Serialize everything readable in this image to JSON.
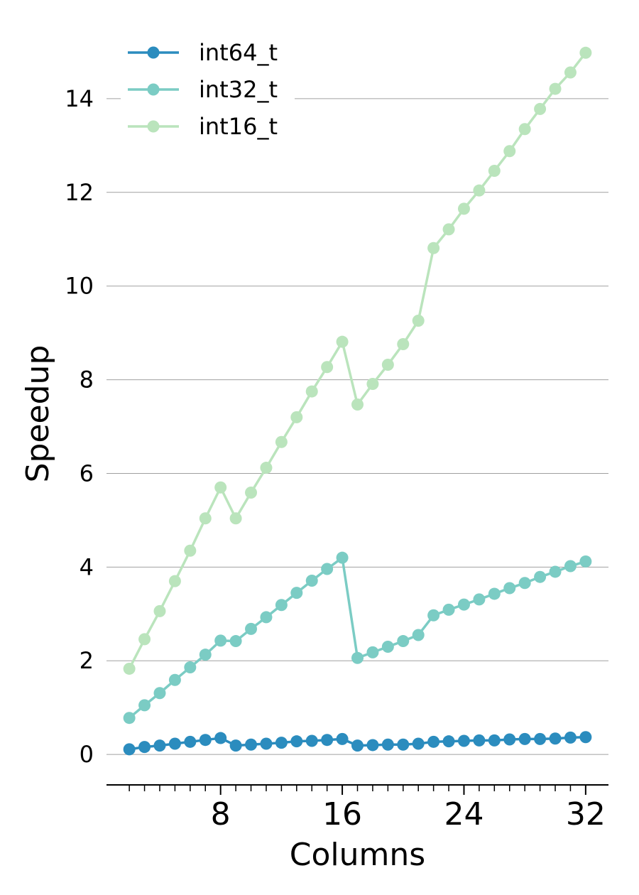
{
  "chart_data": {
    "type": "line",
    "xlabel": "Columns",
    "ylabel": "Speedup",
    "x": [
      2,
      3,
      4,
      5,
      6,
      7,
      8,
      9,
      10,
      11,
      12,
      13,
      14,
      15,
      16,
      17,
      18,
      19,
      20,
      21,
      22,
      23,
      24,
      25,
      26,
      27,
      28,
      29,
      30,
      31,
      32
    ],
    "xlim": [
      0.5,
      33.5
    ],
    "ylim": [
      -0.65,
      15.5
    ],
    "xticks": [
      8,
      16,
      24,
      32
    ],
    "xtick_labels": [
      "8",
      "16",
      "24",
      "32"
    ],
    "x_minor_ticks": [
      2,
      3,
      4,
      5,
      6,
      7,
      9,
      10,
      11,
      12,
      13,
      14,
      15,
      17,
      18,
      19,
      20,
      21,
      22,
      23,
      25,
      26,
      27,
      28,
      29,
      30,
      31
    ],
    "yticks": [
      0,
      2,
      4,
      6,
      8,
      10,
      12,
      14
    ],
    "ytick_labels": [
      "0",
      "2",
      "4",
      "6",
      "8",
      "10",
      "12",
      "14"
    ],
    "grid": "horizontal",
    "legend_position": "top-left",
    "series": [
      {
        "name": "int64_t",
        "color": "#2b8cbe",
        "values": [
          0.11,
          0.16,
          0.19,
          0.23,
          0.27,
          0.31,
          0.35,
          0.19,
          0.21,
          0.23,
          0.25,
          0.28,
          0.29,
          0.31,
          0.33,
          0.19,
          0.2,
          0.21,
          0.21,
          0.23,
          0.27,
          0.28,
          0.29,
          0.3,
          0.3,
          0.32,
          0.33,
          0.33,
          0.34,
          0.36,
          0.37
        ]
      },
      {
        "name": "int32_t",
        "color": "#7bccc4",
        "values": [
          0.78,
          1.05,
          1.31,
          1.59,
          1.86,
          2.13,
          2.43,
          2.42,
          2.68,
          2.93,
          3.19,
          3.45,
          3.71,
          3.96,
          4.2,
          2.06,
          2.18,
          2.3,
          2.42,
          2.55,
          2.97,
          3.09,
          3.2,
          3.31,
          3.43,
          3.55,
          3.66,
          3.79,
          3.9,
          4.02,
          4.12
        ]
      },
      {
        "name": "int16_t",
        "color": "#bae4bc",
        "values": [
          1.83,
          2.46,
          3.06,
          3.7,
          4.35,
          5.04,
          5.7,
          5.04,
          5.59,
          6.12,
          6.67,
          7.2,
          7.75,
          8.27,
          8.81,
          7.47,
          7.91,
          8.32,
          8.76,
          9.26,
          10.81,
          11.21,
          11.65,
          12.04,
          12.46,
          12.88,
          13.35,
          13.78,
          14.21,
          14.56,
          14.98
        ]
      }
    ]
  }
}
